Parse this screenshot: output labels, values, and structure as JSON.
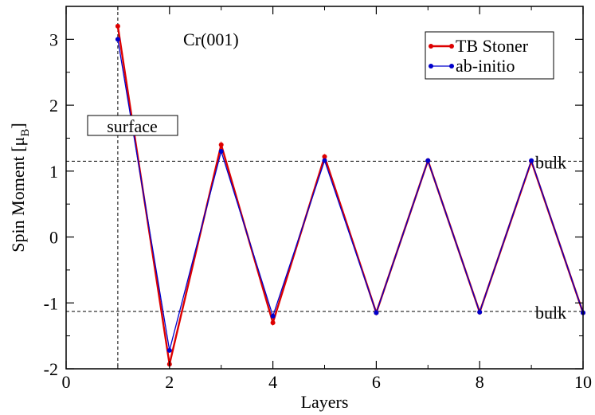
{
  "chart_data": {
    "type": "line",
    "xlabel": "Layers",
    "ylabel_main": "Spin Moment [μ",
    "ylabel_sub": "B",
    "ylabel_close": "]",
    "xlim": [
      0,
      10
    ],
    "ylim": [
      -2,
      3.5
    ],
    "xticks": [
      0,
      2,
      4,
      6,
      8,
      10
    ],
    "yticks": [
      -2,
      -1,
      0,
      1,
      2,
      3
    ],
    "x": [
      1,
      2,
      3,
      4,
      5,
      6,
      7,
      8,
      9,
      10
    ],
    "series": [
      {
        "name": "TB Stoner",
        "color": "#dd0000",
        "values": [
          3.2,
          -1.93,
          1.4,
          -1.3,
          1.22,
          -1.15,
          1.16,
          -1.14,
          1.15,
          -1.15
        ]
      },
      {
        "name": "ab-initio",
        "color": "#0000cc",
        "values": [
          3.0,
          -1.72,
          1.3,
          -1.2,
          1.16,
          -1.15,
          1.16,
          -1.14,
          1.16,
          -1.15
        ]
      }
    ],
    "reference_lines": [
      {
        "y": 1.15,
        "label": "bulk"
      },
      {
        "y": -1.13,
        "label": "bulk"
      }
    ],
    "vertical_line": {
      "x": 1,
      "label": "surface"
    },
    "annotation": "Cr(001)",
    "legend_position": "top-right"
  }
}
